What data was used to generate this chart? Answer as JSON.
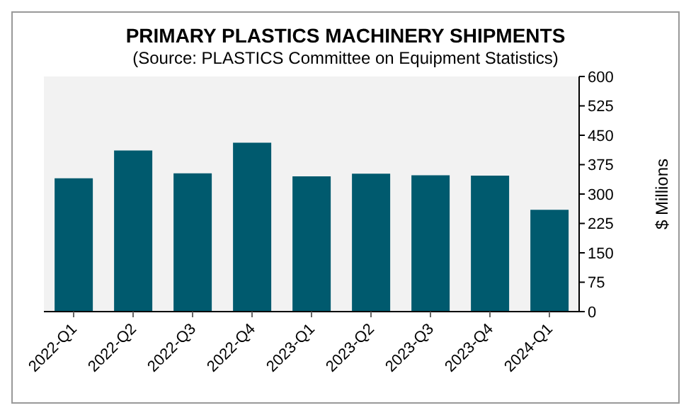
{
  "chart_data": {
    "type": "bar",
    "title": "PRIMARY PLASTICS MACHINERY SHIPMENTS",
    "subtitle": "(Source: PLASTICS Committee on Equipment Statistics)",
    "ylabel": "$ Millions",
    "categories": [
      "2022-Q1",
      "2022-Q2",
      "2022-Q3",
      "2022-Q4",
      "2023-Q1",
      "2023-Q2",
      "2023-Q3",
      "2023-Q4",
      "2024-Q1"
    ],
    "values": [
      340,
      411,
      353,
      431,
      345,
      352,
      348,
      347,
      260
    ],
    "color": "#005a6e",
    "ylim": [
      0,
      600
    ],
    "yticks": [
      0,
      75,
      150,
      225,
      300,
      375,
      450,
      525,
      600
    ],
    "grid": false
  }
}
